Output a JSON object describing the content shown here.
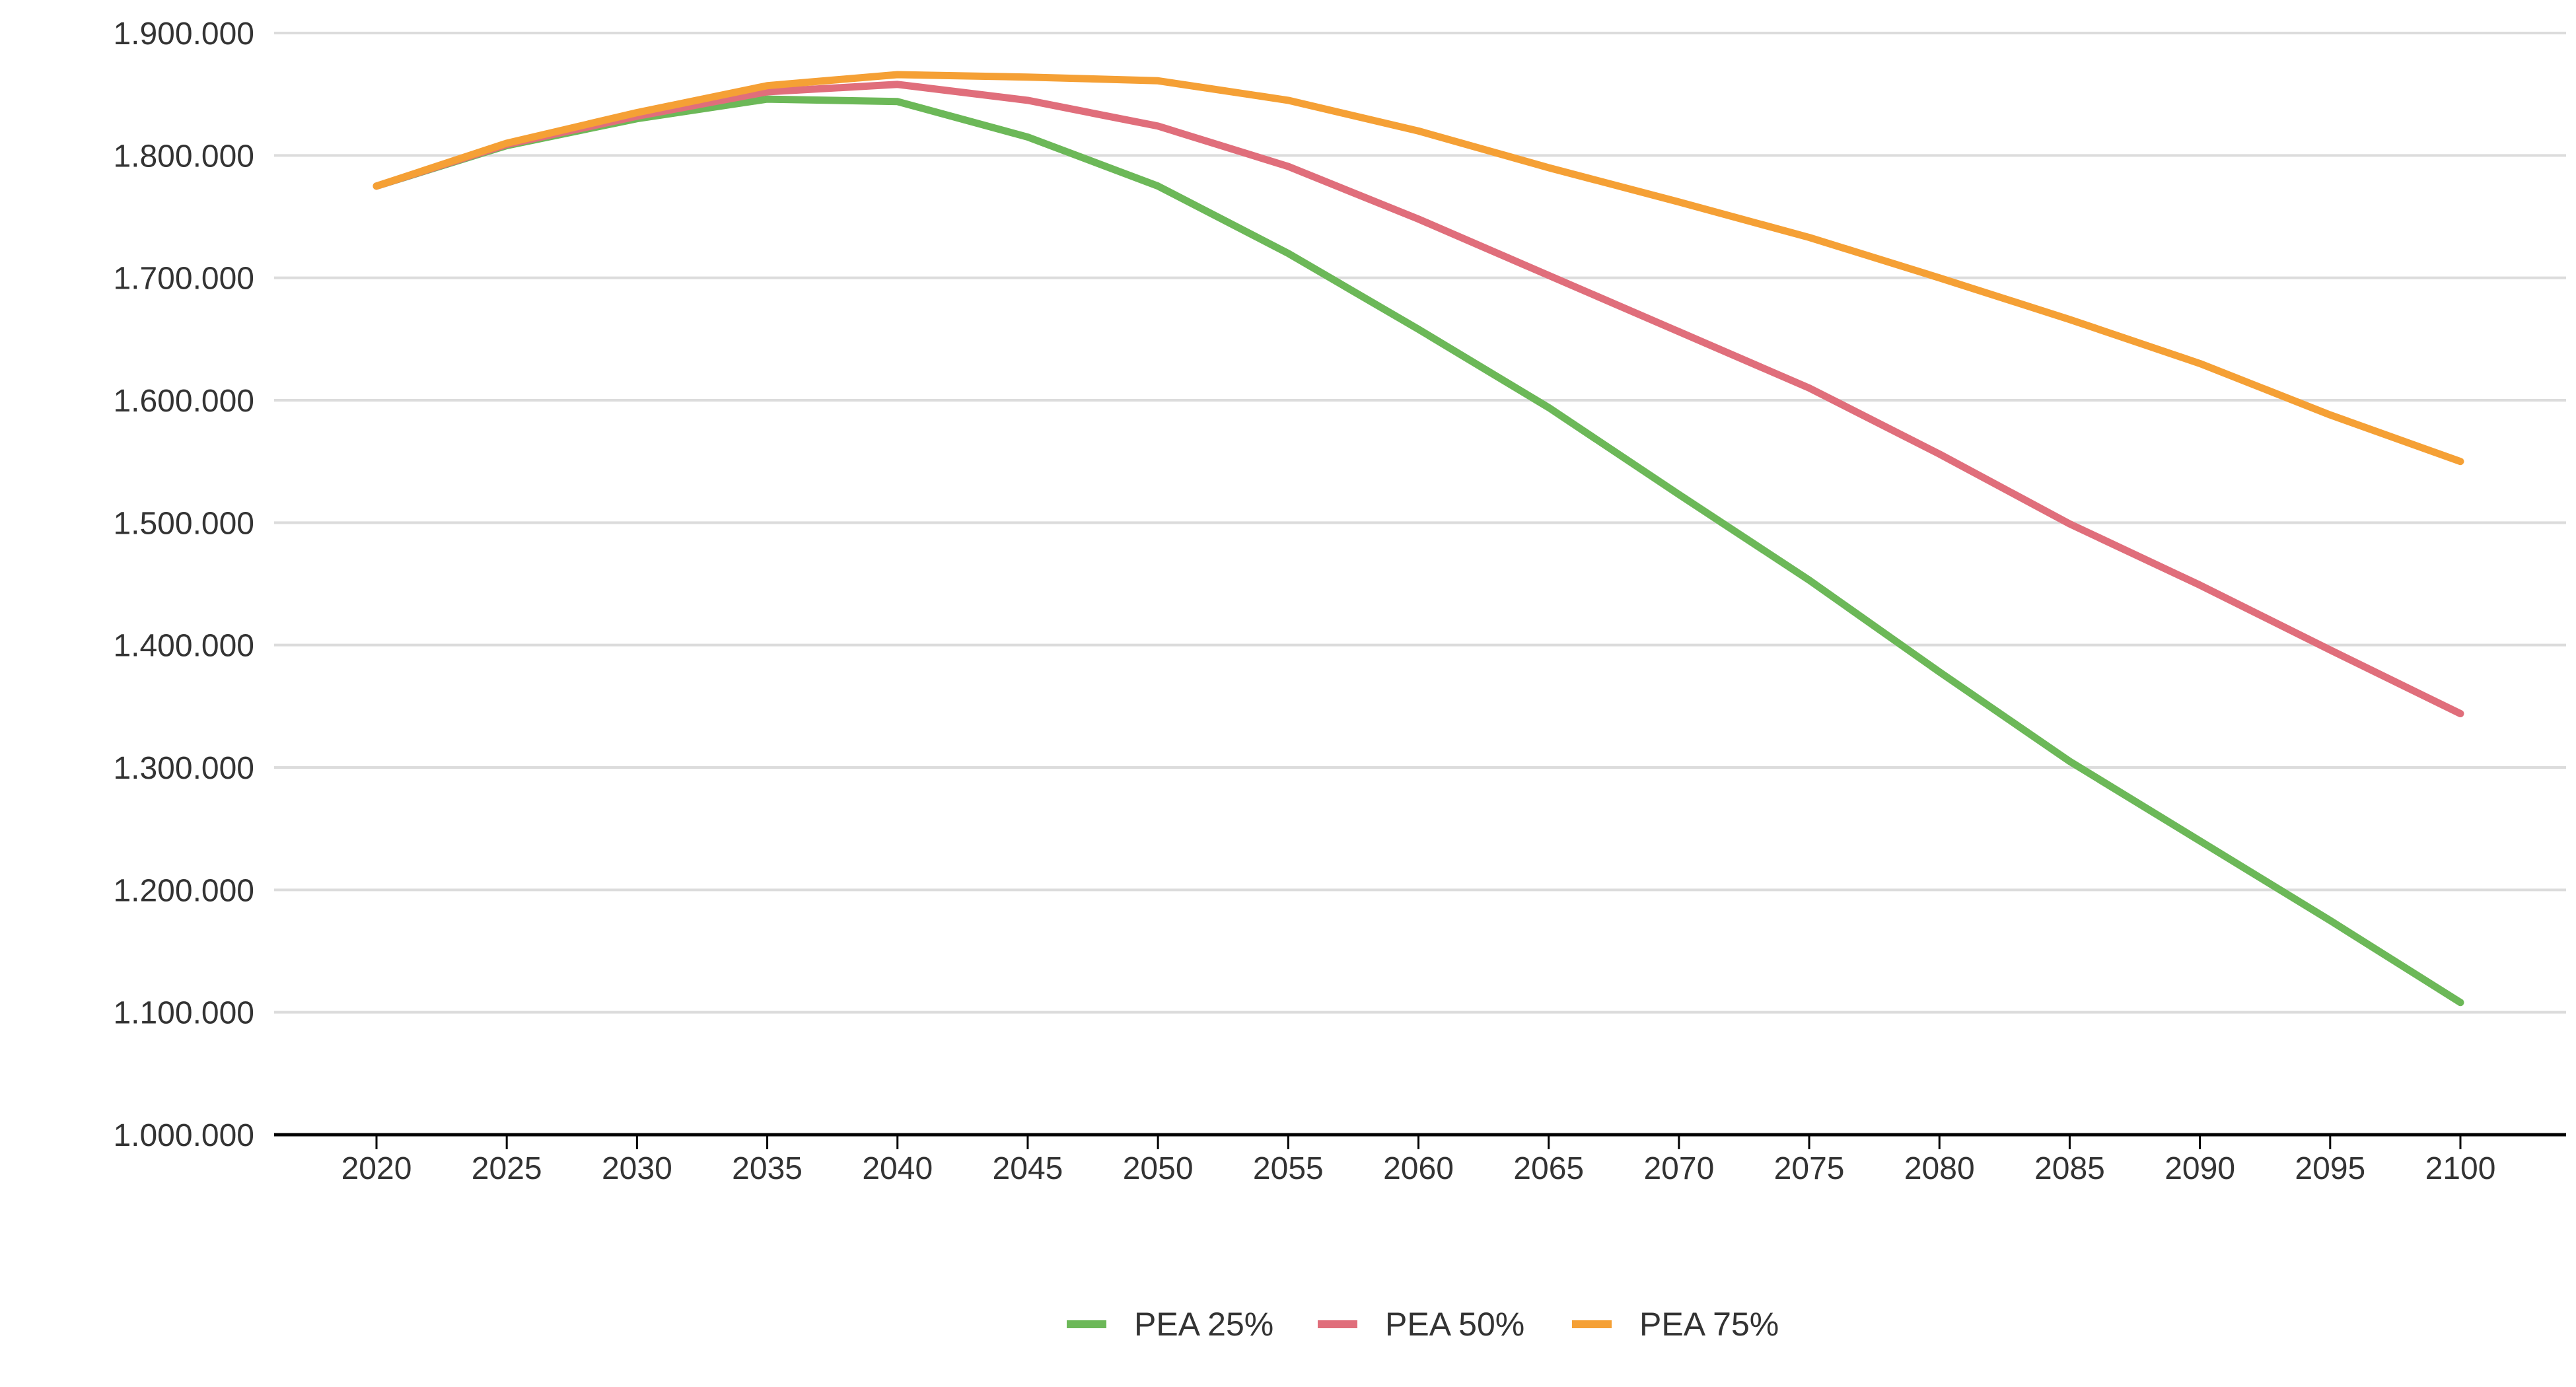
{
  "chart_data": {
    "type": "line",
    "title": "",
    "xlabel": "",
    "ylabel": "",
    "x": [
      "2020",
      "2025",
      "2030",
      "2035",
      "2040",
      "2045",
      "2050",
      "2055",
      "2060",
      "2065",
      "2070",
      "2075",
      "2080",
      "2085",
      "2090",
      "2095",
      "2100"
    ],
    "ylim": [
      1000000,
      1900000
    ],
    "yticks": [
      1000000,
      1100000,
      1200000,
      1300000,
      1400000,
      1500000,
      1600000,
      1700000,
      1800000,
      1900000
    ],
    "ytick_labels": [
      "1.000.000",
      "1.100.000",
      "1.200.000",
      "1.300.000",
      "1.400.000",
      "1.500.000",
      "1.600.000",
      "1.700.000",
      "1.800.000",
      "1.900.000"
    ],
    "grid": true,
    "legend_position": "bottom",
    "series": [
      {
        "name": "PEA 25%",
        "color": "#6cb858",
        "values": [
          1775000,
          1808000,
          1830000,
          1846000,
          1844000,
          1815000,
          1775000,
          1720000,
          1658000,
          1594000,
          1523000,
          1453000,
          1378000,
          1305000,
          1240000,
          1175000,
          1108000
        ]
      },
      {
        "name": "PEA 50%",
        "color": "#e06e7b",
        "values": [
          1775000,
          1809000,
          1832000,
          1852000,
          1858000,
          1845000,
          1824000,
          1791000,
          1748000,
          1702000,
          1656000,
          1610000,
          1556000,
          1499000,
          1449000,
          1396000,
          1344000
        ]
      },
      {
        "name": "PEA 75%",
        "color": "#f5a035",
        "values": [
          1775000,
          1810000,
          1835000,
          1857000,
          1866000,
          1864000,
          1861000,
          1845000,
          1820000,
          1790000,
          1762000,
          1733000,
          1700000,
          1666000,
          1630000,
          1588000,
          1550000
        ]
      }
    ]
  }
}
